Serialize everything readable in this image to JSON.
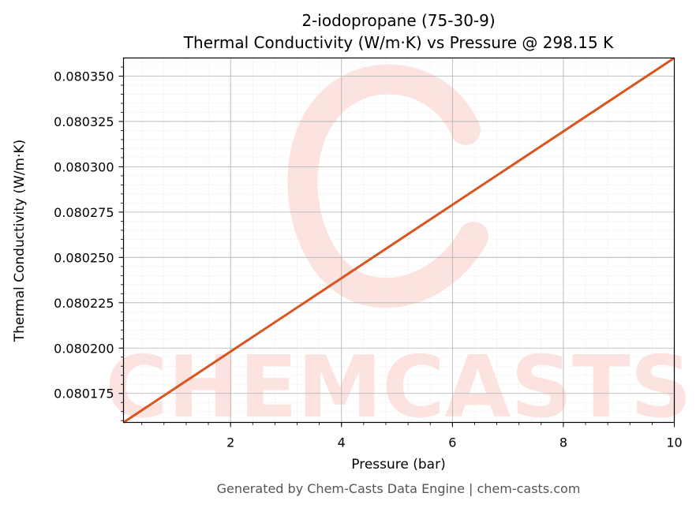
{
  "chart_data": {
    "type": "line",
    "title_line1": "2-iodopropane (75-30-9)",
    "title_line2": "Thermal Conductivity (W/m·K) vs Pressure @ 298.15 K",
    "xlabel": "Pressure (bar)",
    "ylabel": "Thermal Conductivity (W/m·K)",
    "xlim": [
      0.07,
      10
    ],
    "ylim": [
      0.080159,
      0.08036
    ],
    "x_ticks": [
      2,
      4,
      6,
      8,
      10
    ],
    "y_ticks": [
      0.080175,
      0.0802,
      0.080225,
      0.08025,
      0.080275,
      0.0803,
      0.080325,
      0.08035
    ],
    "x_tick_labels": [
      "2",
      "4",
      "6",
      "8",
      "10"
    ],
    "y_tick_labels": [
      "0.080175",
      "0.080200",
      "0.080225",
      "0.080250",
      "0.080275",
      "0.080300",
      "0.080325",
      "0.080350"
    ],
    "grid": true,
    "series": [
      {
        "color": "#d9541e",
        "x": [
          0.07,
          10
        ],
        "y": [
          0.080159,
          0.08036
        ]
      }
    ]
  },
  "watermark": {
    "text": "CHEMCASTS",
    "color": "#fde3df"
  },
  "footer": "Generated by Chem-Casts Data Engine | chem-casts.com"
}
